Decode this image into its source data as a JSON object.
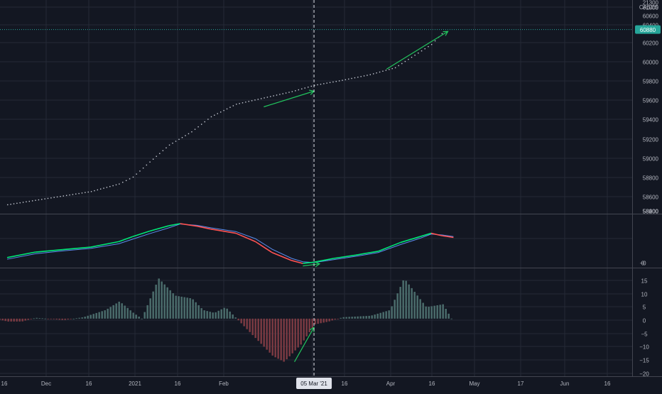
{
  "colors": {
    "background": "#131722",
    "grid": "#252a36",
    "axis_text": "#b2b5be",
    "price_dots": "#c8ccd6",
    "price_badge": "#26a69a",
    "macd_up": "#00e676",
    "macd_down": "#ff5252",
    "signal": "#5b8def",
    "signal_pink": "#e040fb",
    "hist_pos": "#4a6b6b",
    "hist_neg": "#7a3a42",
    "arrow": "#22c55e",
    "crosshair": "#e0e3eb"
  },
  "chart_data": [
    {
      "type": "scatter",
      "panel": "price",
      "title": "",
      "ylabel": "CASES",
      "ylim": [
        57950,
        61350
      ],
      "y_ticks": [
        "21300",
        "61000",
        "60880",
        "60600",
        "60400",
        "60200",
        "60000",
        "59800",
        "59600",
        "59400",
        "59200",
        "59000",
        "58800",
        "58600",
        "58400",
        "58200",
        "58000"
      ],
      "last_value": "60880",
      "series": [
        {
          "values": [
            {
              "x": "2020-11-15",
              "y": 58100
            },
            {
              "x": "2020-11-25",
              "y": 58170
            },
            {
              "x": "2020-12-05",
              "y": 58240
            },
            {
              "x": "2020-12-15",
              "y": 58310
            },
            {
              "x": "2020-12-25",
              "y": 58430
            },
            {
              "x": "2020-12-30",
              "y": 58540
            },
            {
              "x": "2021-01-05",
              "y": 58780
            },
            {
              "x": "2021-01-12",
              "y": 59050
            },
            {
              "x": "2021-01-20",
              "y": 59260
            },
            {
              "x": "2021-01-27",
              "y": 59500
            },
            {
              "x": "2021-02-05",
              "y": 59700
            },
            {
              "x": "2021-02-15",
              "y": 59800
            },
            {
              "x": "2021-02-25",
              "y": 59900
            },
            {
              "x": "2021-03-05",
              "y": 60000
            },
            {
              "x": "2021-03-15",
              "y": 60080
            },
            {
              "x": "2021-03-25",
              "y": 60170
            },
            {
              "x": "2021-04-03",
              "y": 60280
            },
            {
              "x": "2021-04-10",
              "y": 60480
            },
            {
              "x": "2021-04-16",
              "y": 60650
            },
            {
              "x": "2021-04-21",
              "y": 60880
            }
          ]
        }
      ]
    },
    {
      "type": "line",
      "panel": "macd",
      "ylim": [
        -0.12,
        1.15
      ],
      "y_ticks": [
        "0",
        "−0"
      ],
      "series": [
        {
          "name": "",
          "role": "macd",
          "values": [
            {
              "x": "2020-11-15",
              "y": 0.12
            },
            {
              "x": "2020-11-25",
              "y": 0.25
            },
            {
              "x": "2020-12-05",
              "y": 0.31
            },
            {
              "x": "2020-12-15",
              "y": 0.37
            },
            {
              "x": "2020-12-25",
              "y": 0.5
            },
            {
              "x": "2020-12-30",
              "y": 0.62
            },
            {
              "x": "2021-01-05",
              "y": 0.75
            },
            {
              "x": "2021-01-12",
              "y": 0.88
            },
            {
              "x": "2021-01-16",
              "y": 0.93
            },
            {
              "x": "2021-01-22",
              "y": 0.87
            },
            {
              "x": "2021-01-27",
              "y": 0.8
            },
            {
              "x": "2021-02-05",
              "y": 0.7
            },
            {
              "x": "2021-02-12",
              "y": 0.5
            },
            {
              "x": "2021-02-18",
              "y": 0.24
            },
            {
              "x": "2021-02-25",
              "y": 0.05
            },
            {
              "x": "2021-03-01",
              "y": -0.02
            },
            {
              "x": "2021-03-05",
              "y": 0.01
            },
            {
              "x": "2021-03-12",
              "y": 0.1
            },
            {
              "x": "2021-03-20",
              "y": 0.18
            },
            {
              "x": "2021-03-28",
              "y": 0.27
            },
            {
              "x": "2021-04-05",
              "y": 0.48
            },
            {
              "x": "2021-04-12",
              "y": 0.62
            },
            {
              "x": "2021-04-16",
              "y": 0.7
            },
            {
              "x": "2021-04-20",
              "y": 0.64
            },
            {
              "x": "2021-04-24",
              "y": 0.6
            }
          ]
        },
        {
          "name": "",
          "role": "signal",
          "values": [
            {
              "x": "2020-11-15",
              "y": 0.08
            },
            {
              "x": "2020-11-25",
              "y": 0.21
            },
            {
              "x": "2020-12-05",
              "y": 0.28
            },
            {
              "x": "2020-12-15",
              "y": 0.34
            },
            {
              "x": "2020-12-25",
              "y": 0.45
            },
            {
              "x": "2020-12-30",
              "y": 0.56
            },
            {
              "x": "2021-01-05",
              "y": 0.69
            },
            {
              "x": "2021-01-12",
              "y": 0.83
            },
            {
              "x": "2021-01-16",
              "y": 0.92
            },
            {
              "x": "2021-01-22",
              "y": 0.89
            },
            {
              "x": "2021-01-27",
              "y": 0.83
            },
            {
              "x": "2021-02-05",
              "y": 0.74
            },
            {
              "x": "2021-02-12",
              "y": 0.57
            },
            {
              "x": "2021-02-18",
              "y": 0.32
            },
            {
              "x": "2021-02-25",
              "y": 0.1
            },
            {
              "x": "2021-03-01",
              "y": 0.02
            },
            {
              "x": "2021-03-05",
              "y": 0.0
            },
            {
              "x": "2021-03-12",
              "y": 0.07
            },
            {
              "x": "2021-03-20",
              "y": 0.15
            },
            {
              "x": "2021-03-28",
              "y": 0.24
            },
            {
              "x": "2021-04-05",
              "y": 0.43
            },
            {
              "x": "2021-04-12",
              "y": 0.58
            },
            {
              "x": "2021-04-16",
              "y": 0.68
            },
            {
              "x": "2021-04-20",
              "y": 0.66
            },
            {
              "x": "2021-04-24",
              "y": 0.62
            }
          ]
        }
      ]
    },
    {
      "type": "bar",
      "panel": "histogram",
      "ylim": [
        -20,
        15
      ],
      "y_ticks": [
        "15",
        "10",
        "5",
        "0",
        "−5",
        "−10",
        "−15",
        "−20"
      ],
      "anchors": [
        {
          "x": "2020-11-10",
          "y": 0
        },
        {
          "x": "2020-11-15",
          "y": -1
        },
        {
          "x": "2020-11-20",
          "y": -1
        },
        {
          "x": "2020-11-25",
          "y": 0.3
        },
        {
          "x": "2020-12-05",
          "y": -0.5
        },
        {
          "x": "2020-12-12",
          "y": 0.5
        },
        {
          "x": "2020-12-20",
          "y": 3
        },
        {
          "x": "2020-12-25",
          "y": 6
        },
        {
          "x": "2020-12-30",
          "y": 2
        },
        {
          "x": "2021-01-02",
          "y": 0
        },
        {
          "x": "2021-01-08",
          "y": 14
        },
        {
          "x": "2021-01-14",
          "y": 8
        },
        {
          "x": "2021-01-20",
          "y": 7
        },
        {
          "x": "2021-01-24",
          "y": 3
        },
        {
          "x": "2021-01-28",
          "y": 2
        },
        {
          "x": "2021-02-01",
          "y": 4
        },
        {
          "x": "2021-02-05",
          "y": 0
        },
        {
          "x": "2021-02-12",
          "y": -7
        },
        {
          "x": "2021-02-18",
          "y": -13
        },
        {
          "x": "2021-02-22",
          "y": -15
        },
        {
          "x": "2021-02-28",
          "y": -9
        },
        {
          "x": "2021-03-05",
          "y": -2
        },
        {
          "x": "2021-03-10",
          "y": -1
        },
        {
          "x": "2021-03-15",
          "y": 0.5
        },
        {
          "x": "2021-03-25",
          "y": 1
        },
        {
          "x": "2021-04-01",
          "y": 3
        },
        {
          "x": "2021-04-06",
          "y": 14
        },
        {
          "x": "2021-04-10",
          "y": 9
        },
        {
          "x": "2021-04-14",
          "y": 4
        },
        {
          "x": "2021-04-20",
          "y": 5
        },
        {
          "x": "2021-04-23",
          "y": 0
        }
      ]
    }
  ],
  "x_axis": {
    "ticks": [
      {
        "label": "16",
        "date": "2020-11-16"
      },
      {
        "label": "Dec",
        "date": "2020-12-01"
      },
      {
        "label": "16",
        "date": "2020-12-16"
      },
      {
        "label": "2021",
        "date": "2021-01-01"
      },
      {
        "label": "16",
        "date": "2021-01-16"
      },
      {
        "label": "Feb",
        "date": "2021-02-01"
      },
      {
        "label": "16",
        "date": "2021-03-16"
      },
      {
        "label": "Apr",
        "date": "2021-04-01"
      },
      {
        "label": "16",
        "date": "2021-04-16"
      },
      {
        "label": "May",
        "date": "2021-05-01"
      },
      {
        "label": "17",
        "date": "2021-05-17"
      },
      {
        "label": "Jun",
        "date": "2021-06-01"
      },
      {
        "label": "16",
        "date": "2021-06-16"
      }
    ],
    "crosshair_label": "05 Mar '21",
    "crosshair_date": "2021-03-05"
  },
  "annotations": [
    {
      "panel": "price",
      "from": {
        "x": "2021-02-15",
        "y": 59650
      },
      "to": {
        "x": "2021-03-05",
        "y": 59900
      }
    },
    {
      "panel": "price",
      "from": {
        "x": "2021-03-31",
        "y": 60250
      },
      "to": {
        "x": "2021-04-22",
        "y": 60850
      }
    },
    {
      "panel": "macd",
      "from": {
        "x": "2021-03-01",
        "y": -0.08
      },
      "to": {
        "x": "2021-03-07",
        "y": -0.03
      }
    },
    {
      "panel": "histogram",
      "from": {
        "x": "2021-02-26",
        "y": -15
      },
      "to": {
        "x": "2021-03-05",
        "y": -3
      }
    }
  ]
}
